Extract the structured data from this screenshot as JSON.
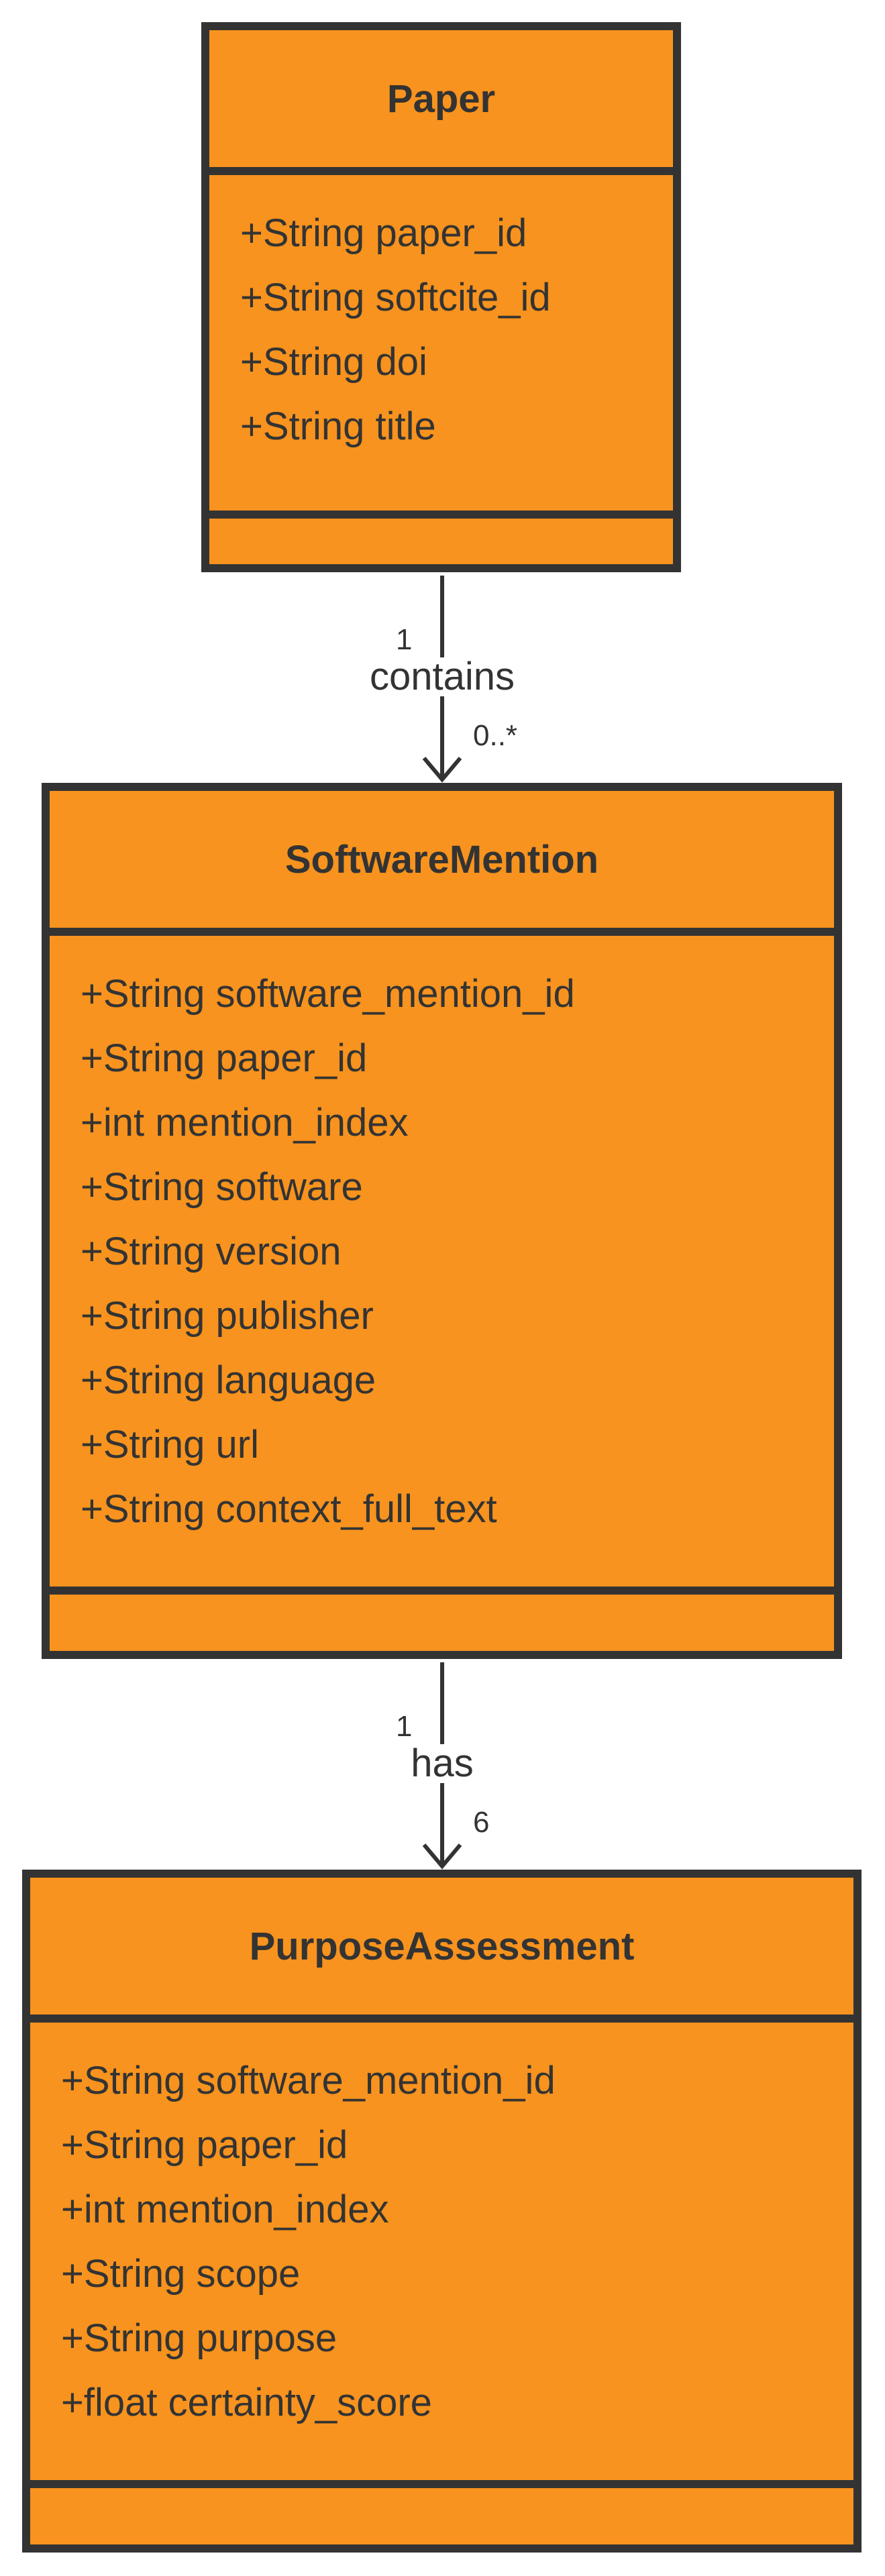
{
  "classes": [
    {
      "name": "Paper",
      "attributes": [
        "+String paper_id",
        "+String softcite_id",
        "+String doi",
        "+String title"
      ]
    },
    {
      "name": "SoftwareMention",
      "attributes": [
        "+String software_mention_id",
        "+String paper_id",
        "+int mention_index",
        "+String software",
        "+String version",
        "+String publisher",
        "+String language",
        "+String url",
        "+String context_full_text"
      ]
    },
    {
      "name": "PurposeAssessment",
      "attributes": [
        "+String software_mention_id",
        "+String paper_id",
        "+int mention_index",
        "+String scope",
        "+String purpose",
        "+float certainty_score"
      ]
    }
  ],
  "relations": [
    {
      "from": "Paper",
      "to": "SoftwareMention",
      "label": "contains",
      "from_multiplicity": "1",
      "to_multiplicity": "0..*"
    },
    {
      "from": "SoftwareMention",
      "to": "PurposeAssessment",
      "label": "has",
      "from_multiplicity": "1",
      "to_multiplicity": "6"
    }
  ],
  "colors": {
    "class_fill": "#f7931e",
    "border": "#333333",
    "text": "#333333",
    "background": "#ffffff"
  }
}
